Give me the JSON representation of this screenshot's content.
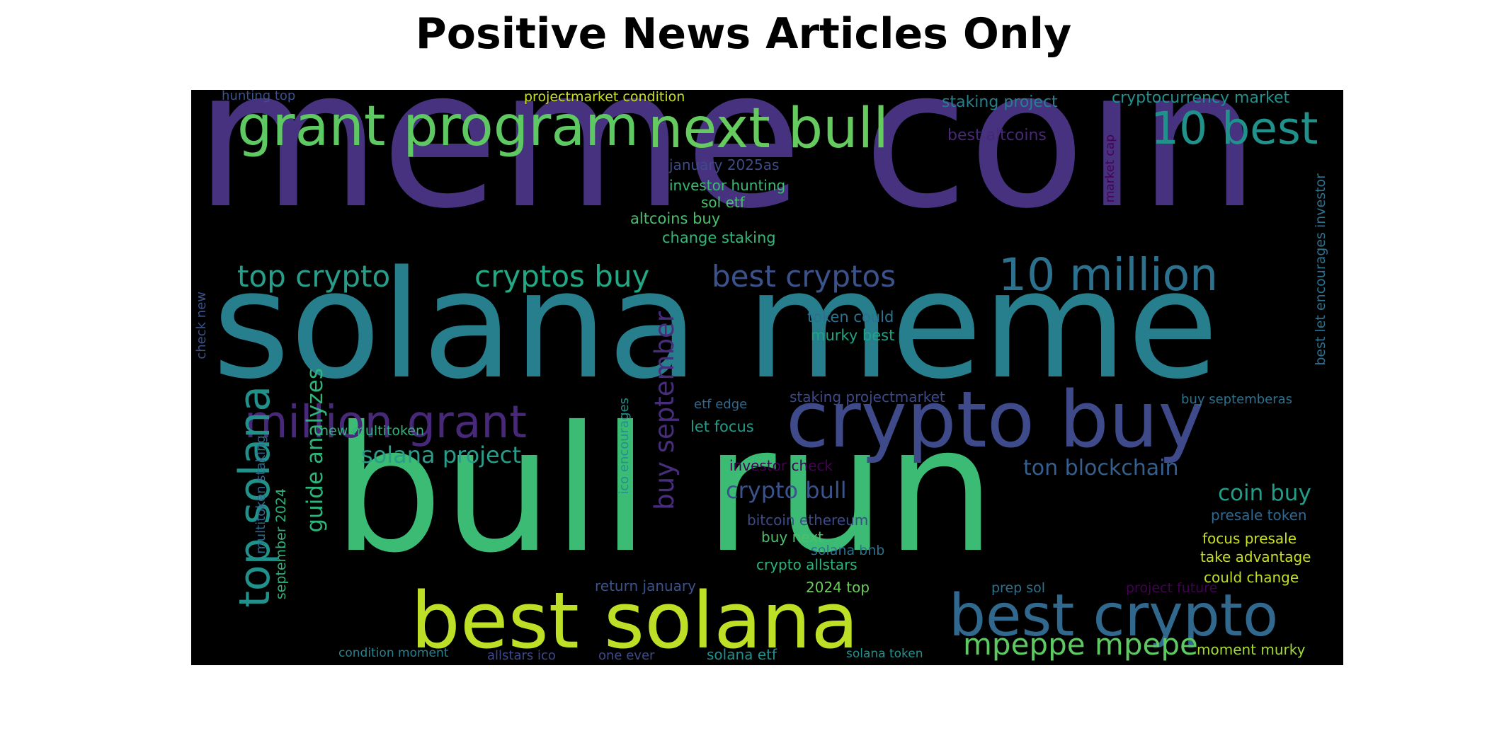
{
  "title": "Positive News Articles Only",
  "background_color": "#000000",
  "words": [
    {
      "text": "meme coin",
      "color": "#46327e"
    },
    {
      "text": "solana meme",
      "color": "#277f8e"
    },
    {
      "text": "bull run",
      "color": "#3cbb75"
    },
    {
      "text": "best solana",
      "color": "#bddf26"
    },
    {
      "text": "crypto buy",
      "color": "#3e4a89"
    },
    {
      "text": "grant program",
      "color": "#5ec962"
    },
    {
      "text": "next bull",
      "color": "#65cb5e"
    },
    {
      "text": "10 best",
      "color": "#21918c"
    },
    {
      "text": "10 million",
      "color": "#2c718e"
    },
    {
      "text": "best crypto",
      "color": "#31688e"
    },
    {
      "text": "million grant",
      "color": "#482878"
    },
    {
      "text": "top solana",
      "color": "#21918c"
    },
    {
      "text": "top crypto",
      "color": "#2a9d8a"
    },
    {
      "text": "cryptos buy",
      "color": "#22a884"
    },
    {
      "text": "best cryptos",
      "color": "#3b528b"
    },
    {
      "text": "buy september",
      "color": "#472d7b"
    },
    {
      "text": "guide analyzes",
      "color": "#2fb47c"
    },
    {
      "text": "mpeppe mpepe",
      "color": "#5ec962"
    },
    {
      "text": "crypto bull",
      "color": "#3b528b"
    },
    {
      "text": "solana project",
      "color": "#2a9d8a"
    },
    {
      "text": "ton blockchain",
      "color": "#355f8d"
    },
    {
      "text": "coin buy",
      "color": "#1f9e89"
    },
    {
      "text": "hunting top",
      "color": "#3b528b"
    },
    {
      "text": "projectmarket condition",
      "color": "#c8e020"
    },
    {
      "text": "staking project",
      "color": "#277f8e"
    },
    {
      "text": "cryptocurrency market",
      "color": "#21918c"
    },
    {
      "text": "best altcoins",
      "color": "#482878"
    },
    {
      "text": "january 2025as",
      "color": "#3e4a89"
    },
    {
      "text": "investor hunting",
      "color": "#3cbb75"
    },
    {
      "text": "sol etf",
      "color": "#4ac16d"
    },
    {
      "text": "altcoins buy",
      "color": "#4ac16d"
    },
    {
      "text": "change staking",
      "color": "#35b779"
    },
    {
      "text": "market cap",
      "color": "#440154"
    },
    {
      "text": "best let encourages investor",
      "color": "#2c718e"
    },
    {
      "text": "token could",
      "color": "#2c728e"
    },
    {
      "text": "murky best",
      "color": "#20a386"
    },
    {
      "text": "staking projectmarket",
      "color": "#3e4989"
    },
    {
      "text": "check new",
      "color": "#3b528b"
    },
    {
      "text": "etf edge",
      "color": "#31688e"
    },
    {
      "text": "let focus",
      "color": "#1f9e89"
    },
    {
      "text": "new multitoken",
      "color": "#2fb47c"
    },
    {
      "text": "ico encourages",
      "color": "#21918c"
    },
    {
      "text": "multitoken staking",
      "color": "#31688e"
    },
    {
      "text": "september 2024",
      "color": "#2db27d"
    },
    {
      "text": "investor check",
      "color": "#440154"
    },
    {
      "text": "buy septemberas",
      "color": "#2c728e"
    },
    {
      "text": "bitcoin ethereum",
      "color": "#3e4a89"
    },
    {
      "text": "presale token",
      "color": "#31688e"
    },
    {
      "text": "buy next",
      "color": "#4ac16d"
    },
    {
      "text": "solana bnb",
      "color": "#2c728e"
    },
    {
      "text": "focus presale",
      "color": "#cae11f"
    },
    {
      "text": "crypto allstars",
      "color": "#2fb47c"
    },
    {
      "text": "take advantage",
      "color": "#c8e020"
    },
    {
      "text": "return january",
      "color": "#3b528b"
    },
    {
      "text": "2024 top",
      "color": "#6ccd5a"
    },
    {
      "text": "prep sol",
      "color": "#2c728e"
    },
    {
      "text": "project future",
      "color": "#440154"
    },
    {
      "text": "could change",
      "color": "#c0df25"
    },
    {
      "text": "condition moment",
      "color": "#26828e"
    },
    {
      "text": "allstars ico",
      "color": "#3e4989"
    },
    {
      "text": "one ever",
      "color": "#3e4a89"
    },
    {
      "text": "solana etf",
      "color": "#21918c"
    },
    {
      "text": "solana token",
      "color": "#21918c"
    },
    {
      "text": "moment murky",
      "color": "#a2da37"
    }
  ]
}
